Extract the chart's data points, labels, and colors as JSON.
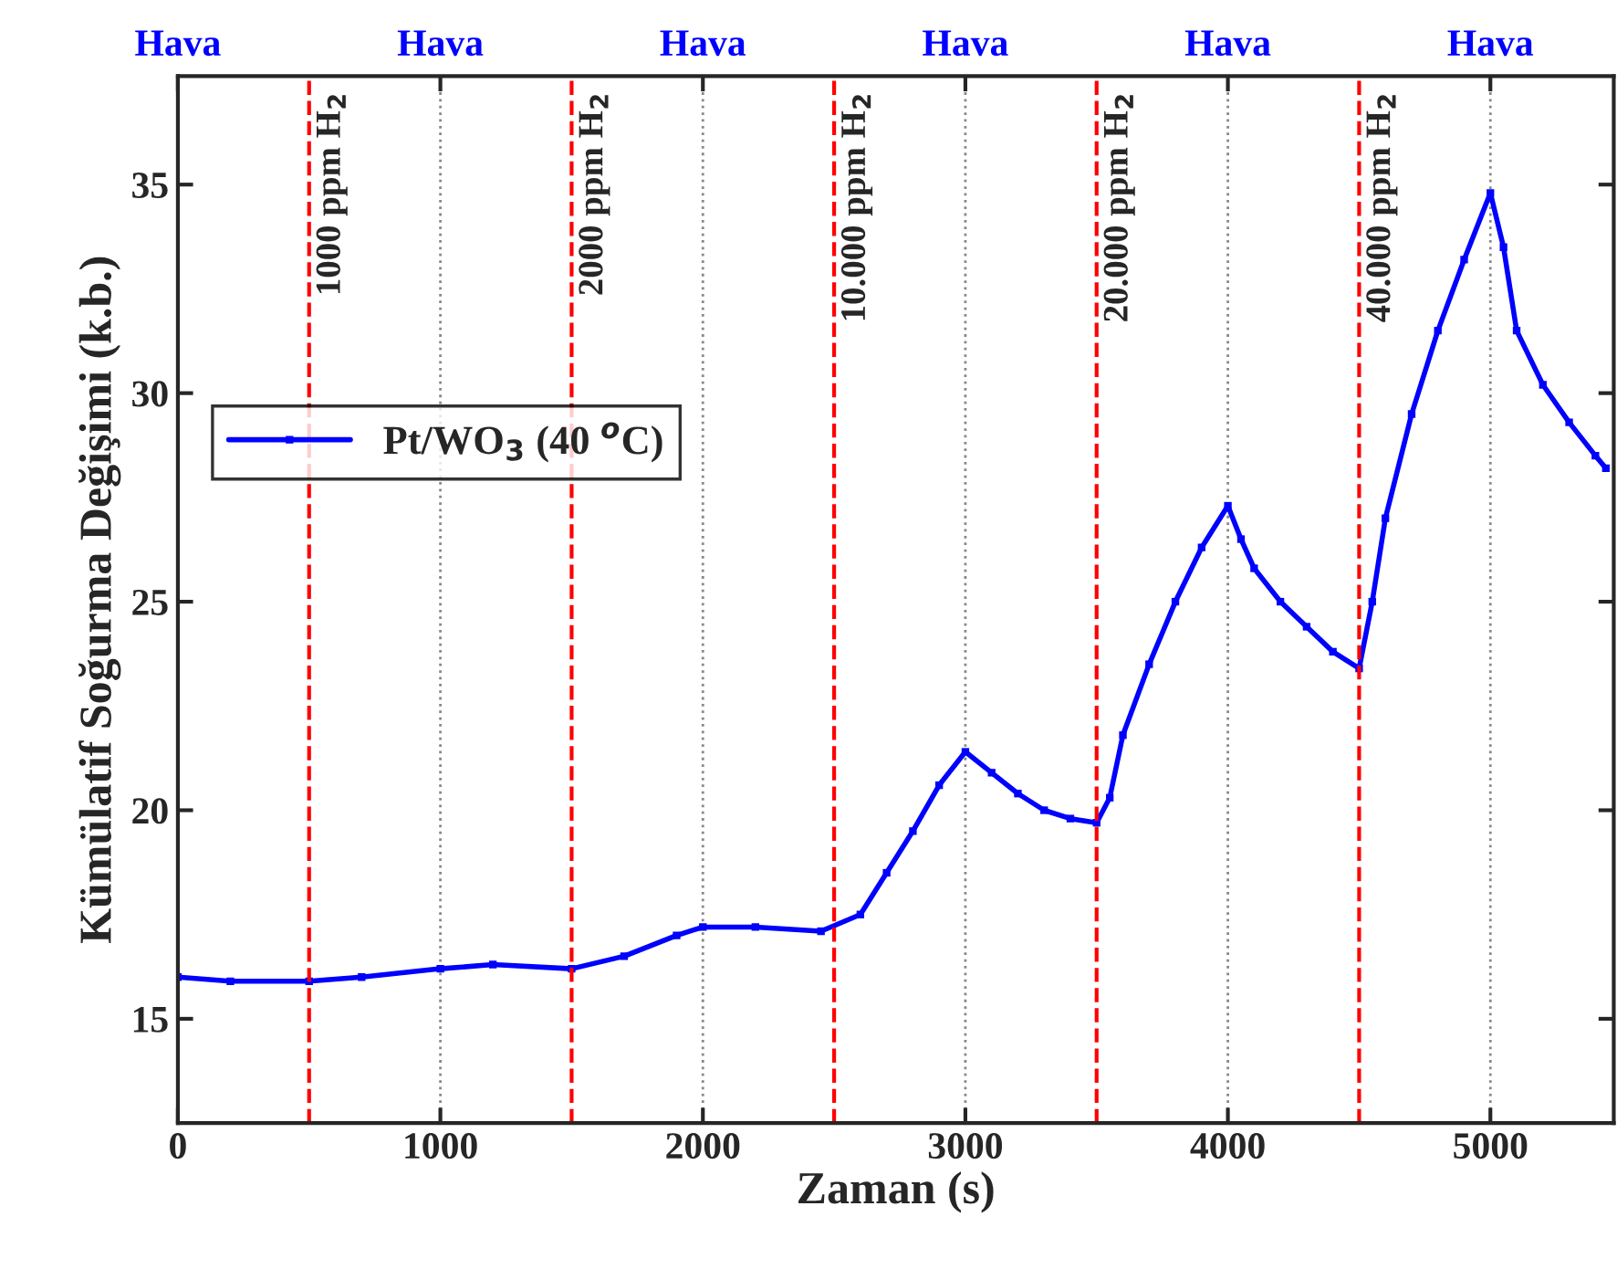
{
  "chart_data": {
    "type": "line",
    "xlabel": "Zaman (s)",
    "ylabel": "Kümülatif Soğurma Değişimi (k.b.)",
    "xlim": [
      0,
      5470
    ],
    "ylim": [
      12.5,
      37.6
    ],
    "xticks": [
      0,
      1000,
      2000,
      3000,
      4000,
      5000
    ],
    "yticks": [
      15,
      20,
      25,
      30,
      35
    ],
    "annotations": [
      "Hava",
      "Hava",
      "Hava",
      "Hava",
      "Hava",
      "Hava"
    ],
    "grid": "x",
    "legend": "center left",
    "marker": "square",
    "line_style": "solid",
    "ref_lines": [
      {
        "axis": "x",
        "value": 500,
        "label": "1000 ppm H$_{2}$",
        "color": "#ff0000",
        "line_style": "dashed"
      },
      {
        "axis": "x",
        "value": 1500,
        "label": "2000 ppm H$_{2}$",
        "color": "#ff0000",
        "line_style": "dashed"
      },
      {
        "axis": "x",
        "value": 2500,
        "label": "10.000 ppm H$_{2}$",
        "color": "#ff0000",
        "line_style": "dashed"
      },
      {
        "axis": "x",
        "value": 3500,
        "label": "20.000 ppm H$_{2}$",
        "color": "#ff0000",
        "line_style": "dashed"
      },
      {
        "axis": "x",
        "value": 4500,
        "label": "40.000 ppm H$_{2}$",
        "color": "#ff0000",
        "line_style": "dashed"
      }
    ],
    "series": [
      {
        "name": "Pt/WO$_{3}$ (40 $^{o}$C)",
        "color": "#0000ff",
        "x": [
          0,
          200,
          500,
          700,
          1000,
          1200,
          1500,
          1700,
          1900,
          2000,
          2200,
          2450,
          2600,
          2700,
          2800,
          2900,
          3000,
          3100,
          3200,
          3300,
          3400,
          3500,
          3550,
          3600,
          3700,
          3800,
          3900,
          4000,
          4050,
          4100,
          4200,
          4300,
          4400,
          4500,
          4550,
          4600,
          4700,
          4800,
          4900,
          5000,
          5050,
          5100,
          5200,
          5300,
          5400,
          5440
        ],
        "values": [
          16.0,
          15.9,
          15.9,
          16.0,
          16.2,
          16.3,
          16.2,
          16.5,
          17.0,
          17.2,
          17.2,
          17.1,
          17.5,
          18.5,
          19.5,
          20.6,
          21.4,
          20.9,
          20.4,
          20.0,
          19.8,
          19.7,
          20.3,
          21.8,
          23.5,
          25.0,
          26.3,
          27.3,
          26.5,
          25.8,
          25.0,
          24.4,
          23.8,
          23.4,
          25.0,
          27.0,
          29.5,
          31.5,
          33.2,
          34.8,
          33.5,
          31.5,
          30.2,
          29.3,
          28.5,
          28.2
        ]
      }
    ]
  }
}
